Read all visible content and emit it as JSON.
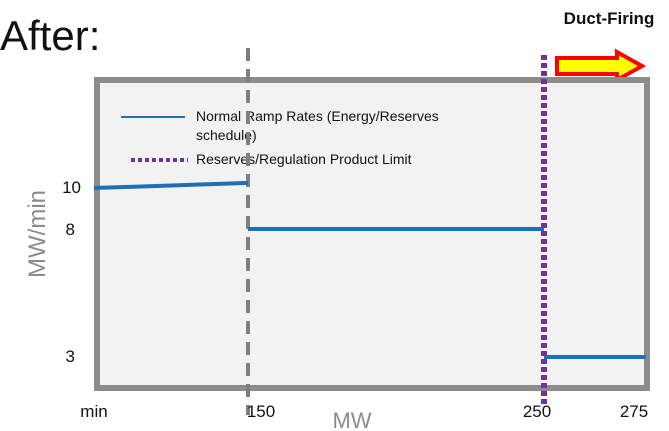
{
  "chart_data": {
    "type": "line",
    "title": "After:",
    "annotation": "Duct-Firing",
    "xlabel": "MW",
    "ylabel": "MW/min",
    "x_ticks": [
      "min",
      "150",
      "250",
      "275"
    ],
    "y_ticks": [
      10,
      8,
      3
    ],
    "legend": {
      "placement": "top-left",
      "entries": [
        "Normal Ramp Rates (Energy/Reserves schedule)",
        "Reserves/Regulation Product Limit"
      ]
    },
    "series": [
      {
        "name": "Normal Ramp Rates (Energy/Reserves schedule)",
        "segments": [
          {
            "x": [
              "min",
              150
            ],
            "y": [
              9.6,
              9.8
            ]
          },
          {
            "x": [
              150,
              250
            ],
            "y": [
              8,
              8
            ]
          },
          {
            "x": [
              250,
              275
            ],
            "y": [
              3,
              3
            ]
          }
        ]
      },
      {
        "name": "Reserves/Regulation Product Limit",
        "x": 250
      }
    ],
    "grid": false
  },
  "colors": {
    "series_line": "#1f6fb5",
    "limit_line": "#7030a0",
    "divider_line": "#7f7f7f",
    "frame": "#8c8c8c",
    "plot_bg": "#f2f2f2",
    "arrow_fill": "#ffff00",
    "arrow_stroke": "#ff0000"
  }
}
